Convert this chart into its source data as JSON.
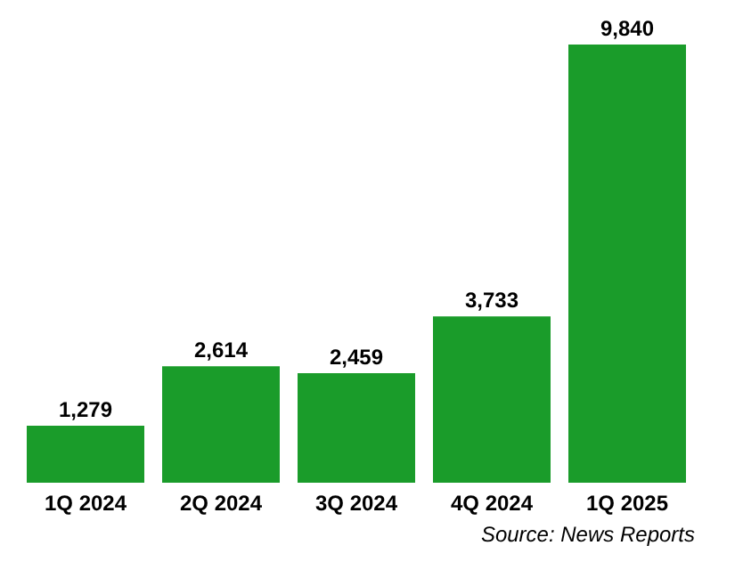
{
  "chart_data": {
    "type": "bar",
    "categories": [
      "1Q 2024",
      "2Q 2024",
      "3Q 2024",
      "4Q 2024",
      "1Q 2025"
    ],
    "values": [
      1279,
      2614,
      2459,
      3733,
      9840
    ],
    "value_labels": [
      "1,279",
      "2,614",
      "2,459",
      "3,733",
      "9,840"
    ],
    "color": "#1a9c2a",
    "tick_labels": "x",
    "grid": false,
    "annotations": [
      "Source: News Reports"
    ]
  }
}
